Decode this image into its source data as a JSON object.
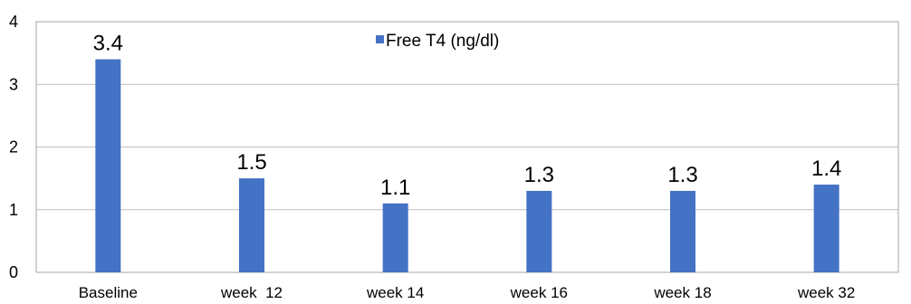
{
  "chart_data": {
    "type": "bar",
    "categories": [
      "Baseline",
      "week  12",
      "week 14",
      "week 16",
      "week 18",
      "week 32"
    ],
    "series": [
      {
        "name": "Free T4 (ng/dl)",
        "values": [
          3.4,
          1.5,
          1.1,
          1.3,
          1.3,
          1.4
        ],
        "data_labels": [
          "3.4",
          "1.5",
          "1.1",
          "1.3",
          "1.3",
          "1.4"
        ],
        "color": "#4472C4"
      }
    ],
    "ylim": [
      0,
      4
    ],
    "yticks": [
      "0",
      "1",
      "2",
      "3",
      "4"
    ],
    "grid": true,
    "legend": "top-center"
  }
}
